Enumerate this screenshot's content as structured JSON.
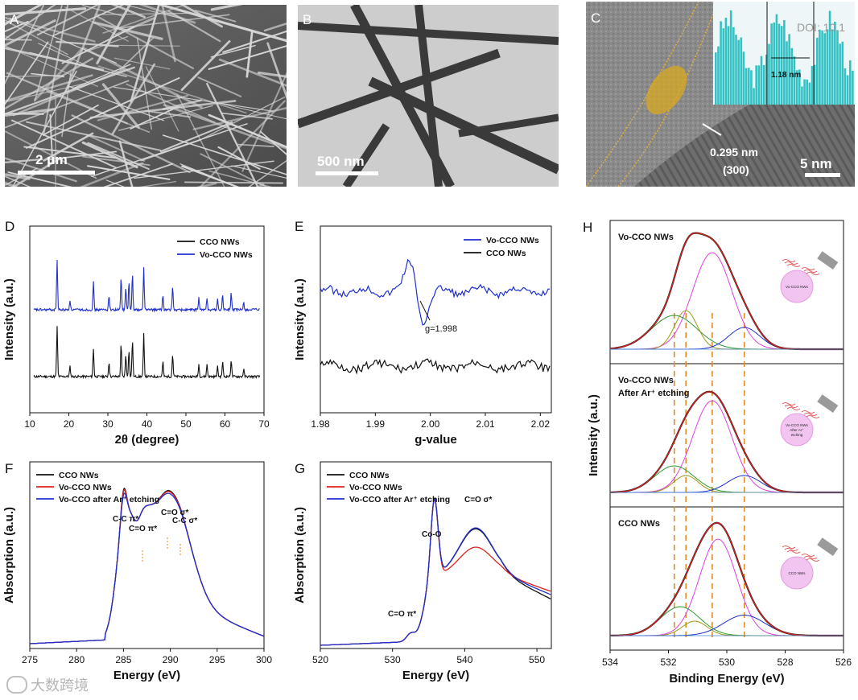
{
  "watermark": {
    "doi": "DOI: 10.1",
    "brand": "大数跨境"
  },
  "panels": {
    "A": {
      "label": "A",
      "scalebar": "2 μm"
    },
    "B": {
      "label": "B",
      "scalebar": "500 nm"
    },
    "C": {
      "label": "C",
      "scalebar": "5 nm",
      "spacing": "0.295 nm",
      "plane": "(300)",
      "inset_spacing": "1.18 nm"
    },
    "H": {
      "label": "H"
    }
  },
  "chart_data": [
    {
      "id": "D",
      "type": "line",
      "label": "D",
      "xlabel": "2θ (degree)",
      "ylabel": "Intensity (a.u.)",
      "xlim": [
        10,
        70
      ],
      "xticks": [
        10,
        20,
        30,
        40,
        50,
        60,
        70
      ],
      "legend": [
        "CCO NWs",
        "Vo-CCO NWs"
      ],
      "series": [
        {
          "name": "CCO NWs",
          "color": "#111111",
          "peaks": [
            17.0,
            20.3,
            26.3,
            30.3,
            33.4,
            34.6,
            35.4,
            36.3,
            39.2,
            44.1,
            46.6,
            53.3,
            55.4,
            58.1,
            59.4,
            61.6,
            64.8
          ]
        },
        {
          "name": "Vo-CCO NWs",
          "color": "#1f2fd0",
          "peaks": [
            17.0,
            20.3,
            26.3,
            30.3,
            33.4,
            34.6,
            35.4,
            36.3,
            39.2,
            44.1,
            46.6,
            53.3,
            55.4,
            58.1,
            59.4,
            61.6,
            64.8
          ]
        }
      ]
    },
    {
      "id": "E",
      "type": "line",
      "label": "E",
      "xlabel": "g-value",
      "ylabel": "Intensity (a.u.)",
      "xlim": [
        1.98,
        2.022
      ],
      "xticks": [
        1.98,
        1.99,
        2.0,
        2.01,
        2.02
      ],
      "xticklabels": [
        "1.98",
        "1.99",
        "2.00",
        "2.01",
        "2.02"
      ],
      "legend": [
        "Vo-CCO NWs",
        "CCO NWs"
      ],
      "annotation": "g=1.998",
      "series": [
        {
          "name": "Vo-CCO NWs",
          "color": "#1f2fd0"
        },
        {
          "name": "CCO NWs",
          "color": "#111111"
        }
      ]
    },
    {
      "id": "F",
      "type": "line",
      "label": "F",
      "xlabel": "Energy (eV)",
      "ylabel": "Absorption (a.u.)",
      "xlim": [
        275,
        300
      ],
      "xticks": [
        275,
        280,
        285,
        290,
        295,
        300
      ],
      "legend": [
        "CCO NWs",
        "Vo-CCO NWs",
        "Vo-CCO after Ar⁺ etching"
      ],
      "annotations": [
        "C-C π*",
        "C=O π*",
        "C=O σ*",
        "C-C σ*"
      ],
      "series": [
        {
          "name": "CCO NWs",
          "color": "#111111"
        },
        {
          "name": "Vo-CCO NWs",
          "color": "#e0201d"
        },
        {
          "name": "Vo-CCO after Ar⁺ etching",
          "color": "#1f2fd0"
        }
      ]
    },
    {
      "id": "G",
      "type": "line",
      "label": "G",
      "xlabel": "Energy (eV)",
      "ylabel": "Absorption (a.u.)",
      "xlim": [
        520,
        552
      ],
      "xticks": [
        520,
        530,
        540,
        550
      ],
      "legend": [
        "CCO NWs",
        "Vo-CCO NWs",
        "Vo-CCO after Ar⁺ etching"
      ],
      "annotations": [
        "C=O σ*",
        "Co-O",
        "C=O π*"
      ],
      "series": [
        {
          "name": "CCO NWs",
          "color": "#111111"
        },
        {
          "name": "Vo-CCO NWs",
          "color": "#e0201d"
        },
        {
          "name": "Vo-CCO after Ar⁺ etching",
          "color": "#1f2fd0"
        }
      ]
    },
    {
      "id": "H",
      "type": "line",
      "label": "H",
      "xlabel": "Binding Energy (eV)",
      "ylabel": "Intensity (a.u.)",
      "xlim": [
        534,
        526
      ],
      "xticks": [
        534,
        532,
        530,
        528,
        526
      ],
      "reference_lines": [
        531.8,
        531.4,
        530.5,
        529.4
      ],
      "subpanels": [
        {
          "title": "Vo-CCO NWs",
          "title2": "",
          "sphere": [
            "Vo-CCO NWs"
          ],
          "components": [
            {
              "center": 530.5,
              "height": 0.8,
              "width": 0.95,
              "color": "#e040e0"
            },
            {
              "center": 531.8,
              "height": 0.28,
              "width": 1.1,
              "color": "#2e9a2e"
            },
            {
              "center": 531.4,
              "height": 0.32,
              "width": 0.55,
              "color": "#9a9a10"
            },
            {
              "center": 529.4,
              "height": 0.18,
              "width": 0.75,
              "color": "#2030c8"
            }
          ]
        },
        {
          "title": "Vo-CCO NWs",
          "title2": "After Ar⁺ etching",
          "sphere": [
            "Vo-CCO NWs",
            "After Ar⁺",
            "etching"
          ],
          "components": [
            {
              "center": 530.5,
              "height": 0.76,
              "width": 0.95,
              "color": "#e040e0"
            },
            {
              "center": 531.8,
              "height": 0.22,
              "width": 0.95,
              "color": "#2e9a2e"
            },
            {
              "center": 531.4,
              "height": 0.14,
              "width": 0.6,
              "color": "#9a9a10"
            },
            {
              "center": 529.4,
              "height": 0.14,
              "width": 0.8,
              "color": "#2030c8"
            }
          ]
        },
        {
          "title": "CCO NWs",
          "title2": "",
          "sphere": [
            "CCO NWs"
          ],
          "components": [
            {
              "center": 530.3,
              "height": 0.8,
              "width": 0.9,
              "color": "#e040e0"
            },
            {
              "center": 531.6,
              "height": 0.24,
              "width": 0.95,
              "color": "#2e9a2e"
            },
            {
              "center": 531.1,
              "height": 0.12,
              "width": 0.6,
              "color": "#9a9a10"
            },
            {
              "center": 529.4,
              "height": 0.17,
              "width": 1.0,
              "color": "#2030c8"
            }
          ]
        }
      ]
    }
  ]
}
